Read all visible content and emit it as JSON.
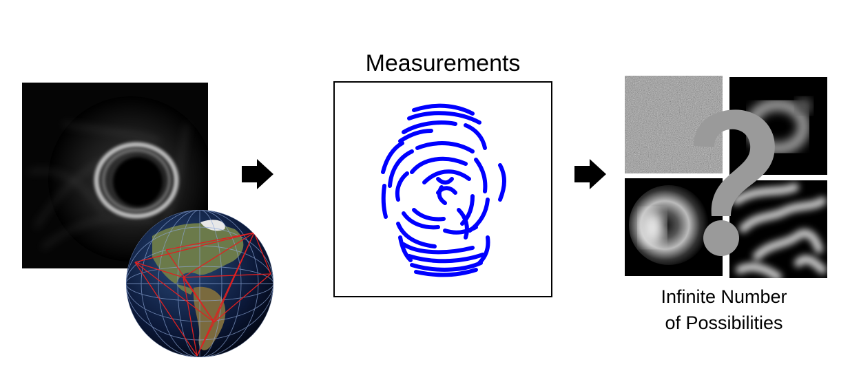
{
  "measurements": {
    "title": "Measurements"
  },
  "possibilities": {
    "caption_line1": "Infinite Number",
    "caption_line2": "of Possibilities"
  },
  "colors": {
    "measurement_arcs": "#0000ff",
    "question_mark": "#9a9a9a",
    "arrow": "#000000",
    "baseline_lines": "#e02020"
  },
  "icons": {
    "arrow": "right-arrow-icon",
    "question": "question-mark-icon"
  }
}
